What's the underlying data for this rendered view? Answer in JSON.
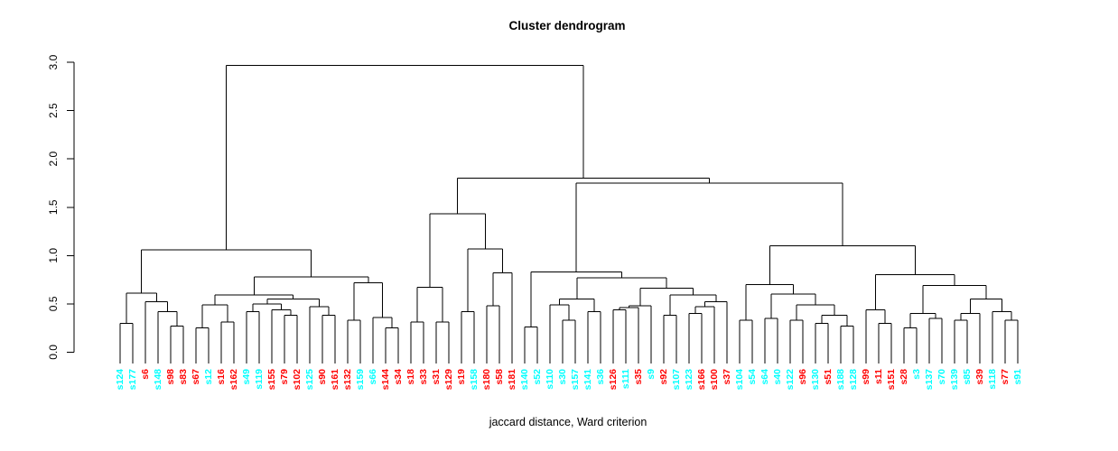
{
  "chart_data": {
    "type": "dendrogram",
    "title": "Cluster dendrogram",
    "xlabel": "jaccard distance, Ward criterion",
    "ylabel": "",
    "ylim": [
      0.0,
      3.0
    ],
    "yticks": [
      "0.0",
      "0.5",
      "1.0",
      "1.5",
      "2.0",
      "2.5",
      "3.0"
    ],
    "ytick_values": [
      0.0,
      0.5,
      1.0,
      1.5,
      2.0,
      2.5,
      3.0
    ],
    "grid": false,
    "line_color": "#000000",
    "label_colors": {
      "cyan": "#00ffff",
      "red": "#ff0000"
    },
    "leaves": [
      {
        "label": "s124",
        "color": "cyan"
      },
      {
        "label": "s177",
        "color": "cyan"
      },
      {
        "label": "s6",
        "color": "red"
      },
      {
        "label": "s148",
        "color": "cyan"
      },
      {
        "label": "s98",
        "color": "red"
      },
      {
        "label": "s83",
        "color": "red"
      },
      {
        "label": "s67",
        "color": "red"
      },
      {
        "label": "s12",
        "color": "cyan"
      },
      {
        "label": "s16",
        "color": "red"
      },
      {
        "label": "s162",
        "color": "red"
      },
      {
        "label": "s49",
        "color": "cyan"
      },
      {
        "label": "s119",
        "color": "cyan"
      },
      {
        "label": "s155",
        "color": "red"
      },
      {
        "label": "s79",
        "color": "red"
      },
      {
        "label": "s102",
        "color": "red"
      },
      {
        "label": "s125",
        "color": "cyan"
      },
      {
        "label": "s90",
        "color": "red"
      },
      {
        "label": "s161",
        "color": "red"
      },
      {
        "label": "s132",
        "color": "red"
      },
      {
        "label": "s159",
        "color": "cyan"
      },
      {
        "label": "s66",
        "color": "cyan"
      },
      {
        "label": "s144",
        "color": "red"
      },
      {
        "label": "s34",
        "color": "red"
      },
      {
        "label": "s18",
        "color": "red"
      },
      {
        "label": "s33",
        "color": "red"
      },
      {
        "label": "s31",
        "color": "red"
      },
      {
        "label": "s129",
        "color": "red"
      },
      {
        "label": "s19",
        "color": "red"
      },
      {
        "label": "s158",
        "color": "cyan"
      },
      {
        "label": "s180",
        "color": "red"
      },
      {
        "label": "s58",
        "color": "red"
      },
      {
        "label": "s181",
        "color": "red"
      },
      {
        "label": "s140",
        "color": "cyan"
      },
      {
        "label": "s52",
        "color": "cyan"
      },
      {
        "label": "s110",
        "color": "cyan"
      },
      {
        "label": "s30",
        "color": "cyan"
      },
      {
        "label": "s157",
        "color": "cyan"
      },
      {
        "label": "s141",
        "color": "cyan"
      },
      {
        "label": "s36",
        "color": "cyan"
      },
      {
        "label": "s126",
        "color": "red"
      },
      {
        "label": "s111",
        "color": "cyan"
      },
      {
        "label": "s35",
        "color": "red"
      },
      {
        "label": "s9",
        "color": "cyan"
      },
      {
        "label": "s92",
        "color": "red"
      },
      {
        "label": "s107",
        "color": "cyan"
      },
      {
        "label": "s123",
        "color": "cyan"
      },
      {
        "label": "s166",
        "color": "red"
      },
      {
        "label": "s100",
        "color": "red"
      },
      {
        "label": "s37",
        "color": "red"
      },
      {
        "label": "s104",
        "color": "cyan"
      },
      {
        "label": "s54",
        "color": "cyan"
      },
      {
        "label": "s64",
        "color": "cyan"
      },
      {
        "label": "s40",
        "color": "cyan"
      },
      {
        "label": "s122",
        "color": "cyan"
      },
      {
        "label": "s96",
        "color": "red"
      },
      {
        "label": "s130",
        "color": "cyan"
      },
      {
        "label": "s51",
        "color": "red"
      },
      {
        "label": "s188",
        "color": "cyan"
      },
      {
        "label": "s128",
        "color": "cyan"
      },
      {
        "label": "s99",
        "color": "red"
      },
      {
        "label": "s11",
        "color": "red"
      },
      {
        "label": "s151",
        "color": "red"
      },
      {
        "label": "s28",
        "color": "red"
      },
      {
        "label": "s3",
        "color": "cyan"
      },
      {
        "label": "s137",
        "color": "cyan"
      },
      {
        "label": "s70",
        "color": "cyan"
      },
      {
        "label": "s139",
        "color": "cyan"
      },
      {
        "label": "s85",
        "color": "cyan"
      },
      {
        "label": "s39",
        "color": "red"
      },
      {
        "label": "s118",
        "color": "cyan"
      },
      {
        "label": "s77",
        "color": "red"
      },
      {
        "label": "s91",
        "color": "cyan"
      }
    ],
    "merge_tree": [
      2.97,
      [
        1.06,
        [
          0.61,
          [
            0.3,
            0,
            1
          ],
          [
            0.52,
            2,
            [
              0.42,
              3,
              [
                0.27,
                4,
                5
              ]
            ]
          ]
        ],
        [
          0.78,
          [
            0.59,
            [
              0.49,
              [
                0.25,
                6,
                7
              ],
              [
                0.31,
                8,
                9
              ]
            ],
            [
              0.55,
              [
                0.5,
                [
                  0.42,
                  10,
                  11
                ],
                [
                  0.44,
                  12,
                  [
                    0.38,
                    13,
                    14
                  ]
                ]
              ],
              [
                0.47,
                15,
                [
                  0.38,
                  16,
                  17
                ]
              ]
            ]
          ],
          [
            0.72,
            [
              0.33,
              18,
              19
            ],
            [
              0.36,
              20,
              [
                0.25,
                21,
                22
              ]
            ]
          ]
        ]
      ],
      [
        1.8,
        [
          1.43,
          [
            0.67,
            [
              0.31,
              23,
              24
            ],
            [
              0.31,
              25,
              26
            ]
          ],
          [
            1.07,
            [
              0.42,
              27,
              28
            ],
            [
              0.82,
              [
                0.48,
                29,
                30
              ],
              31
            ]
          ]
        ],
        [
          1.75,
          [
            0.83,
            [
              0.26,
              32,
              33
            ],
            [
              0.77,
              [
                0.55,
                [
                  0.49,
                  34,
                  [
                    0.33,
                    35,
                    36
                  ]
                ],
                [
                  0.42,
                  37,
                  38
                ]
              ],
              [
                0.66,
                [
                  0.48,
                  [
                    0.46,
                    [
                      0.44,
                      39,
                      40
                    ],
                    41
                  ],
                  42
                ],
                [
                  0.59,
                  [
                    0.38,
                    43,
                    44
                  ],
                  [
                    0.52,
                    [
                      0.47,
                      [
                        0.4,
                        45,
                        46
                      ],
                      47
                    ],
                    48
                  ]
                ]
              ]
            ]
          ],
          [
            1.1,
            [
              0.7,
              [
                0.33,
                49,
                50
              ],
              [
                0.6,
                [
                  0.35,
                  51,
                  52
                ],
                [
                  0.49,
                  [
                    0.33,
                    53,
                    54
                  ],
                  [
                    0.38,
                    [
                      0.3,
                      55,
                      56
                    ],
                    [
                      0.27,
                      57,
                      58
                    ]
                  ]
                ]
              ]
            ],
            [
              0.8,
              [
                0.44,
                59,
                [
                  0.3,
                  60,
                  61
                ]
              ],
              [
                0.69,
                [
                  0.4,
                  [
                    0.25,
                    62,
                    63
                  ],
                  [
                    0.35,
                    64,
                    65
                  ]
                ],
                [
                  0.55,
                  [
                    0.4,
                    [
                      0.33,
                      66,
                      67
                    ],
                    68
                  ],
                  [
                    0.42,
                    69,
                    [
                      0.33,
                      70,
                      71
                    ]
                  ]
                ]
              ]
            ]
          ]
        ]
      ]
    ]
  }
}
